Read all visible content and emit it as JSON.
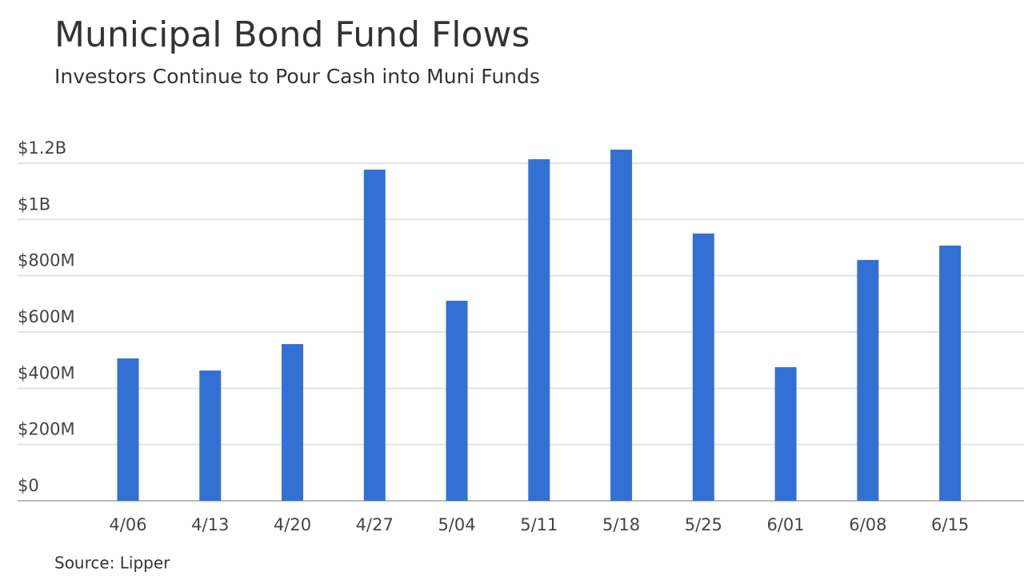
{
  "chart_data": {
    "type": "bar",
    "title": "Municipal Bond Fund Flows",
    "subtitle": "Investors Continue to Pour Cash into Muni Funds",
    "source": "Source: Lipper",
    "categories": [
      "4/06",
      "4/13",
      "4/20",
      "4/27",
      "5/04",
      "5/11",
      "5/18",
      "5/25",
      "6/01",
      "6/08",
      "6/15"
    ],
    "values": [
      506000000,
      463000000,
      557000000,
      1177000000,
      711000000,
      1214000000,
      1248000000,
      950000000,
      475000000,
      856000000,
      907000000
    ],
    "color": "#3370d4",
    "ylim": [
      0,
      1300000000
    ],
    "yticks": [
      {
        "value": 0,
        "label": "$0"
      },
      {
        "value": 200000000,
        "label": "$200M"
      },
      {
        "value": 400000000,
        "label": "$400M"
      },
      {
        "value": 600000000,
        "label": "$600M"
      },
      {
        "value": 800000000,
        "label": "$800M"
      },
      {
        "value": 1000000000,
        "label": "$1B"
      },
      {
        "value": 1200000000,
        "label": "$1.2B"
      }
    ],
    "grid": true
  }
}
